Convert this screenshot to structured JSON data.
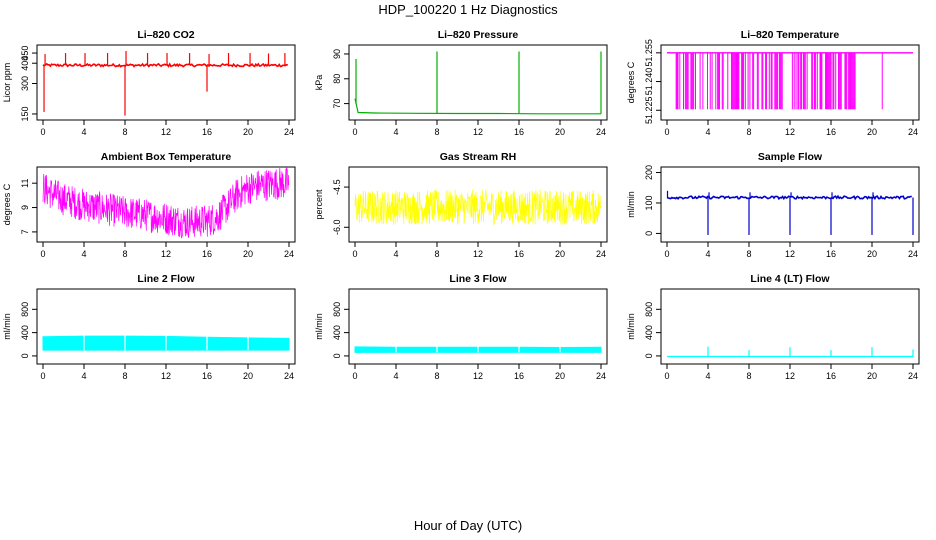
{
  "page": {
    "title": "HDP_100220  1 Hz Diagnostics",
    "x_axis_caption": "Hour of Day (UTC)"
  },
  "chart_data": [
    {
      "type": "line",
      "title": "Li–820 CO2",
      "ylabel": "Licor ppm",
      "color": "#ff0000",
      "xlim": [
        0,
        24
      ],
      "xticks": [
        0,
        4,
        8,
        12,
        16,
        20,
        24
      ],
      "ylim": [
        140,
        470
      ],
      "yticks": [
        150,
        300,
        400,
        450
      ],
      "style": "band",
      "series": [
        {
          "x": [
            0,
            2,
            4,
            6,
            8,
            10,
            12,
            14,
            16,
            18,
            20,
            22,
            24
          ],
          "values": [
            390,
            390,
            390,
            390,
            390,
            390,
            390,
            390,
            390,
            390,
            390,
            390,
            390
          ]
        }
      ],
      "spikes": [
        {
          "x": 0.1,
          "y": 160
        },
        {
          "x": 0.2,
          "y": 445
        },
        {
          "x": 2.2,
          "y": 450
        },
        {
          "x": 4.1,
          "y": 450
        },
        {
          "x": 6.3,
          "y": 450
        },
        {
          "x": 8.0,
          "y": 142
        },
        {
          "x": 8.1,
          "y": 460
        },
        {
          "x": 10.2,
          "y": 450
        },
        {
          "x": 12.1,
          "y": 450
        },
        {
          "x": 14.3,
          "y": 450
        },
        {
          "x": 16.0,
          "y": 260
        },
        {
          "x": 16.2,
          "y": 445
        },
        {
          "x": 18.1,
          "y": 450
        },
        {
          "x": 20.2,
          "y": 450
        },
        {
          "x": 22.0,
          "y": 448
        },
        {
          "x": 23.6,
          "y": 450
        }
      ]
    },
    {
      "type": "line",
      "title": "Li–820 Pressure",
      "ylabel": "kPa",
      "color": "#00b000",
      "xlim": [
        0,
        24
      ],
      "xticks": [
        0,
        4,
        8,
        12,
        16,
        20,
        24
      ],
      "ylim": [
        65,
        92
      ],
      "yticks": [
        70,
        80,
        90
      ],
      "style": "line",
      "series": [
        {
          "x": [
            0,
            0.3,
            2,
            6,
            10,
            14,
            18,
            22,
            24
          ],
          "values": [
            72,
            66.4,
            66.2,
            66.1,
            66.0,
            66.0,
            65.9,
            65.9,
            65.9
          ]
        }
      ],
      "spikes": [
        {
          "x": 0.1,
          "y": 88
        },
        {
          "x": 8.0,
          "y": 91
        },
        {
          "x": 16.0,
          "y": 91
        },
        {
          "x": 24.0,
          "y": 91
        }
      ]
    },
    {
      "type": "line",
      "title": "Li–820 Temperature",
      "ylabel": "degrees C",
      "color": "#ff00ff",
      "xlim": [
        0,
        24
      ],
      "xticks": [
        0,
        4,
        8,
        12,
        16,
        20,
        24
      ],
      "ylim": [
        51.222,
        51.257
      ],
      "yticks": [
        51.225,
        51.24,
        51.255
      ],
      "style": "dropouts",
      "series": [
        {
          "x": [
            0,
            24
          ],
          "values": [
            51.255,
            51.255
          ]
        }
      ],
      "dropout_range": [
        0.8,
        18.5
      ],
      "dropout_low": 51.2255,
      "extra_dropouts": [
        21.0
      ]
    },
    {
      "type": "line",
      "title": "Ambient Box Temperature",
      "ylabel": "degrees C",
      "color": "#ff00ff",
      "xlim": [
        0,
        24
      ],
      "xticks": [
        0,
        4,
        8,
        12,
        16,
        20,
        24
      ],
      "ylim": [
        6.5,
        12
      ],
      "yticks": [
        7,
        9,
        11
      ],
      "style": "noise",
      "series": [
        {
          "x": [
            0,
            1,
            2,
            4,
            6,
            8,
            10,
            12,
            14,
            16,
            17,
            18,
            19,
            20,
            21,
            22,
            23,
            24
          ],
          "values": [
            10.6,
            10.1,
            9.7,
            9.2,
            8.9,
            8.6,
            8.4,
            8.1,
            7.8,
            7.9,
            8.2,
            9.1,
            10.1,
            10.6,
            10.8,
            10.9,
            11.0,
            11.0
          ]
        }
      ],
      "noise": 0.9
    },
    {
      "type": "line",
      "title": "Gas Stream RH",
      "ylabel": "percent",
      "color": "#ffff00",
      "xlim": [
        0,
        24
      ],
      "xticks": [
        0,
        4,
        8,
        12,
        16,
        20,
        24
      ],
      "ylim": [
        -6.4,
        -3.9
      ],
      "yticks": [
        -6.0,
        -4.5
      ],
      "style": "noise",
      "series": [
        {
          "x": [
            0,
            24
          ],
          "values": [
            -5.25,
            -5.25
          ]
        }
      ],
      "noise": 0.95
    },
    {
      "type": "line",
      "title": "Sample Flow",
      "ylabel": "ml/min",
      "color": "#0000cc",
      "xlim": [
        0,
        24
      ],
      "xticks": [
        0,
        4,
        8,
        12,
        16,
        20,
        24
      ],
      "ylim": [
        -15,
        205
      ],
      "yticks": [
        0,
        100,
        200
      ],
      "style": "band",
      "series": [
        {
          "x": [
            0,
            24
          ],
          "values": [
            118,
            118
          ]
        }
      ],
      "spikes": [
        {
          "x": 0.05,
          "y": 140
        },
        {
          "x": 4.0,
          "y": -5
        },
        {
          "x": 4.1,
          "y": 135
        },
        {
          "x": 8.0,
          "y": -5
        },
        {
          "x": 8.1,
          "y": 135
        },
        {
          "x": 12.0,
          "y": -5
        },
        {
          "x": 12.1,
          "y": 135
        },
        {
          "x": 16.0,
          "y": -5
        },
        {
          "x": 16.1,
          "y": 135
        },
        {
          "x": 20.0,
          "y": -5
        },
        {
          "x": 20.1,
          "y": 135
        },
        {
          "x": 24.0,
          "y": -5
        }
      ]
    },
    {
      "type": "area",
      "title": "Line 2 Flow",
      "ylabel": "ml/min",
      "color": "#00ffff",
      "xlim": [
        0,
        24
      ],
      "xticks": [
        0,
        4,
        8,
        12,
        16,
        20,
        24
      ],
      "ylim": [
        -70,
        1080
      ],
      "yticks": [
        0,
        400,
        800
      ],
      "style": "area",
      "series": [
        {
          "x": [
            0,
            4,
            8,
            12,
            16,
            20,
            24
          ],
          "values": [
            330,
            340,
            340,
            335,
            320,
            310,
            300
          ]
        }
      ],
      "lower": 100,
      "gaps": [
        4,
        8,
        12,
        16,
        20
      ]
    },
    {
      "type": "area",
      "title": "Line 3 Flow",
      "ylabel": "ml/min",
      "color": "#00ffff",
      "xlim": [
        0,
        24
      ],
      "xticks": [
        0,
        4,
        8,
        12,
        16,
        20,
        24
      ],
      "ylim": [
        -70,
        1080
      ],
      "yticks": [
        0,
        400,
        800
      ],
      "style": "area",
      "series": [
        {
          "x": [
            0,
            4,
            8,
            12,
            16,
            20,
            24
          ],
          "values": [
            155,
            150,
            150,
            150,
            150,
            145,
            150
          ]
        }
      ],
      "lower": 60,
      "gaps": [
        4,
        8,
        12,
        16,
        20
      ]
    },
    {
      "type": "line",
      "title": "Line 4 (LT) Flow",
      "ylabel": "ml/min",
      "color": "#00ffff",
      "xlim": [
        0,
        24
      ],
      "xticks": [
        0,
        4,
        8,
        12,
        16,
        20,
        24
      ],
      "ylim": [
        -70,
        1080
      ],
      "yticks": [
        0,
        400,
        800
      ],
      "style": "line",
      "series": [
        {
          "x": [
            0,
            24
          ],
          "values": [
            -10,
            -10
          ]
        }
      ],
      "spikes": [
        {
          "x": 4.0,
          "y": 160
        },
        {
          "x": 8.0,
          "y": 100
        },
        {
          "x": 12.0,
          "y": 150
        },
        {
          "x": 16.0,
          "y": 100
        },
        {
          "x": 20.0,
          "y": 150
        },
        {
          "x": 24.0,
          "y": 110
        }
      ]
    }
  ]
}
